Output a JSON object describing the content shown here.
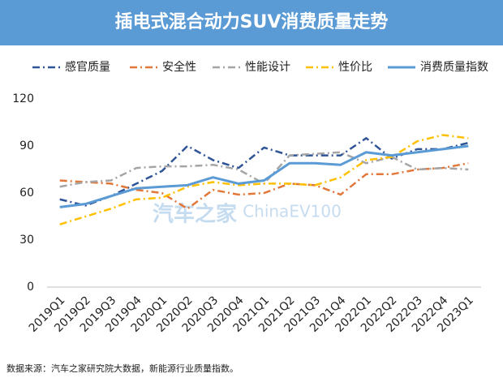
{
  "chart_data": {
    "type": "line",
    "title": "插电式混合动力SUV消费质量走势",
    "source": "数据来源：汽车之家研究院大数据，新能源行业质量指数。",
    "watermark": [
      "汽车之家",
      "ChinaEV100"
    ],
    "categories": [
      "2019Q1",
      "2019Q2",
      "2019Q3",
      "2019Q4",
      "2020Q1",
      "2020Q2",
      "2020Q3",
      "2020Q4",
      "2021Q1",
      "2021Q2",
      "2021Q3",
      "2021Q4",
      "2022Q1",
      "2022Q2",
      "2022Q3",
      "2022Q4",
      "2023Q1"
    ],
    "series": [
      {
        "name": "感官质量",
        "color": "#2f5597",
        "dash": "dashdot",
        "values": [
          56,
          52,
          58,
          66,
          74,
          90,
          81,
          76,
          89,
          84,
          84,
          84,
          95,
          82,
          88,
          88,
          92
        ]
      },
      {
        "name": "安全性",
        "color": "#e2773a",
        "dash": "dashdot",
        "values": [
          68,
          67,
          66,
          62,
          60,
          50,
          62,
          59,
          60,
          66,
          65,
          59,
          72,
          72,
          75,
          76,
          79
        ]
      },
      {
        "name": "性能设计",
        "color": "#a5a5a5",
        "dash": "dashdot",
        "values": [
          64,
          67,
          68,
          76,
          77,
          77,
          78,
          75,
          66,
          84,
          85,
          86,
          79,
          83,
          75,
          76,
          75
        ]
      },
      {
        "name": "性价比",
        "color": "#ffc000",
        "dash": "dashdot",
        "values": [
          40,
          45,
          50,
          56,
          57,
          64,
          67,
          65,
          66,
          66,
          65,
          70,
          81,
          83,
          93,
          97,
          95
        ]
      },
      {
        "name": "消费质量指数",
        "color": "#5b9bd5",
        "dash": "solid",
        "values": [
          51,
          53,
          58,
          63,
          64,
          65,
          70,
          66,
          68,
          79,
          79,
          78,
          86,
          84,
          86,
          88,
          90
        ]
      }
    ],
    "ylim": [
      0,
      120
    ],
    "yticks": [
      0,
      30,
      60,
      90,
      120
    ],
    "grid": false,
    "legend": "top"
  }
}
